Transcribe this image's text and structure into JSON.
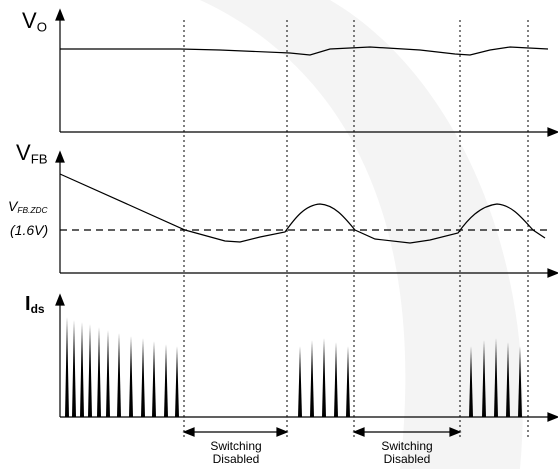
{
  "panels": {
    "vo": {
      "label": "V",
      "sub": "O"
    },
    "vfb": {
      "label": "V",
      "sub": "FB",
      "threshold_name": "V",
      "threshold_sub": "FB.ZDC",
      "threshold_value": "(1.6V)"
    },
    "ids": {
      "label": "I",
      "sub": "ds"
    }
  },
  "annotations": [
    {
      "line1": "Switching",
      "line2": "Disabled"
    },
    {
      "line1": "Switching",
      "line2": "Disabled"
    }
  ],
  "colors": {
    "ink": "#000000",
    "watermark": "#f4f4f4"
  }
}
